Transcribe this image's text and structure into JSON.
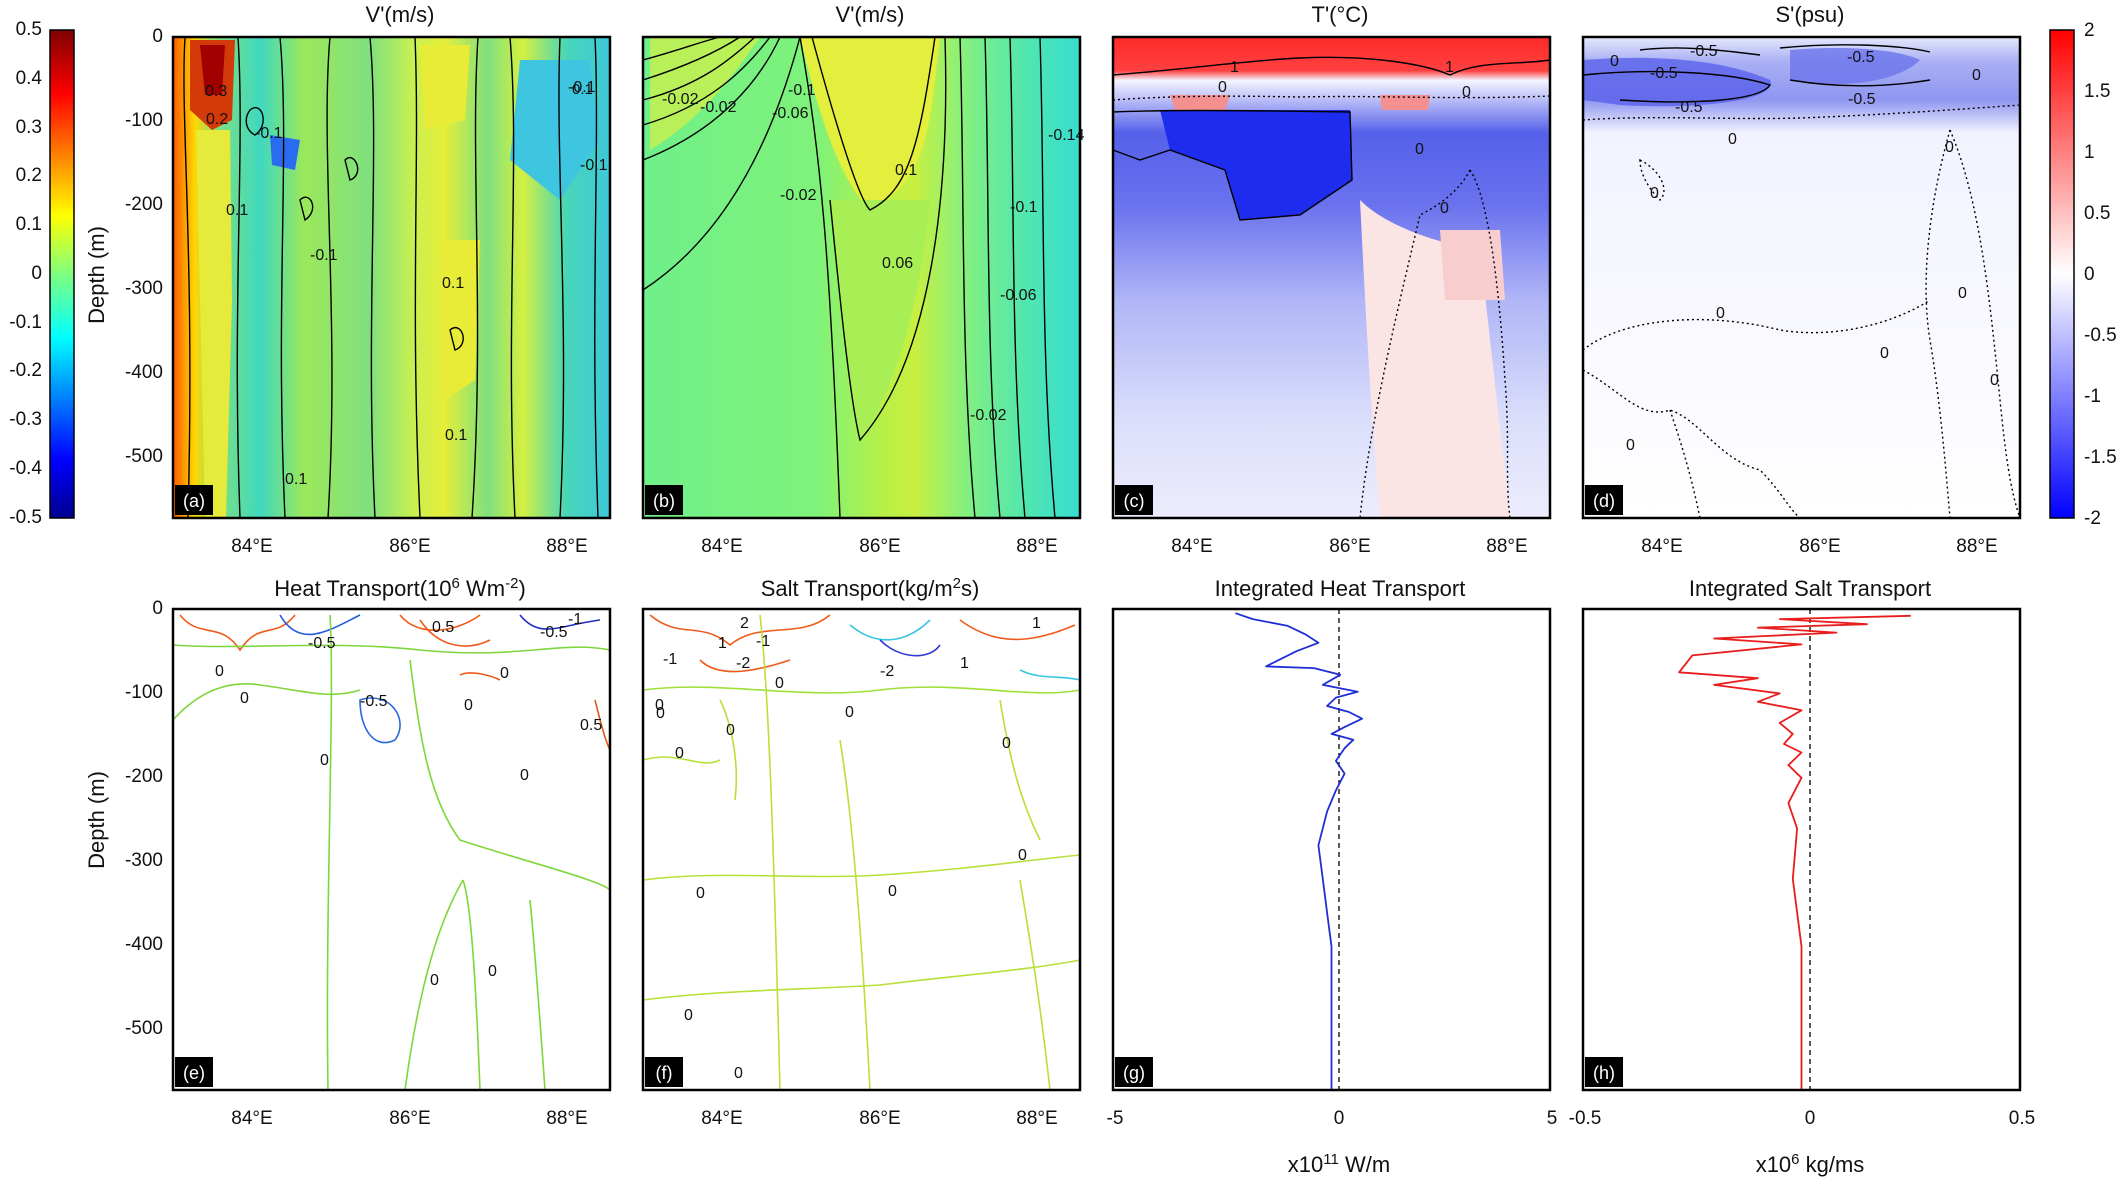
{
  "figure": {
    "colorbar_left": {
      "ticks": [
        "0.5",
        "0.4",
        "0.3",
        "0.2",
        "0.1",
        "0",
        "-0.1",
        "-0.2",
        "-0.3",
        "-0.4",
        "-0.5"
      ],
      "range": [
        -0.5,
        0.5
      ],
      "colormap": "jet"
    },
    "colorbar_right": {
      "ticks": [
        "2",
        "1.5",
        "1",
        "0.5",
        "0",
        "-0.5",
        "-1",
        "-1.5",
        "-2"
      ],
      "range": [
        -2,
        2
      ],
      "colormap": "red-white-blue"
    },
    "depth_ticks": [
      "0",
      "-100",
      "-200",
      "-300",
      "-400",
      "-500"
    ],
    "depth_label": "Depth (m)",
    "lon_ticks": [
      "84°E",
      "86°E",
      "88°E"
    ]
  },
  "panels": {
    "a": {
      "title": "V'(m/s)",
      "tag": "(a)",
      "contours": [
        "0.3",
        "0.2",
        "-0.1",
        "-0.1",
        "0.1",
        "-0.1",
        "0.1",
        "0.1",
        "-0.1",
        "0.1",
        "0.1"
      ]
    },
    "b": {
      "title": "V'(m/s)",
      "tag": "(b)",
      "contours": [
        "-0.02",
        "-0.02",
        "-0.1",
        "-0.06",
        "0.1",
        "0.06",
        "-0.14",
        "-0.1",
        "-0.06",
        "-0.02",
        "-0.02"
      ]
    },
    "c": {
      "title": "T'(°C)",
      "tag": "(c)",
      "contours": [
        "1",
        "0",
        "1",
        "0",
        "0",
        "0"
      ]
    },
    "d": {
      "title": "S'(psu)",
      "tag": "(d)",
      "contours": [
        "-0.5",
        "-0.5",
        "-0.5",
        "-0.5",
        "-0.5",
        "0",
        "0",
        "0",
        "0",
        "0",
        "0",
        "0",
        "0",
        "0",
        "0"
      ]
    },
    "e": {
      "title_main": "Heat Transport(10",
      "title_sup1": "6",
      "title_mid": " Wm",
      "title_sup2": "-2",
      "title_end": ")",
      "tag": "(e)",
      "contours": [
        "-0.5",
        "0.5",
        "-0.5",
        "-1",
        "0",
        "0",
        "0",
        "-0.5",
        "0",
        "0.5",
        "0",
        "0",
        "0",
        "0"
      ]
    },
    "f": {
      "title_main": "Salt Transport(kg/m",
      "title_sup": "2",
      "title_end": "s)",
      "tag": "(f)",
      "contours": [
        "2",
        "1",
        "-1",
        "-1",
        "-2",
        "-2",
        "1",
        "1",
        "0",
        "0",
        "0",
        "0",
        "0",
        "0",
        "0",
        "0",
        "0",
        "0",
        "0",
        "0"
      ]
    },
    "g": {
      "title": "Integrated Heat Transport",
      "tag": "(g)",
      "x_ticks": [
        "-5",
        "0",
        "5"
      ],
      "xlabel_main": "x10",
      "xlabel_sup": "11",
      "xlabel_unit": " W/m"
    },
    "h": {
      "title": "Integrated Salt Transport",
      "tag": "(h)",
      "x_ticks": [
        "-0.5",
        "0",
        "0.5"
      ],
      "xlabel_main": "x10",
      "xlabel_sup": "6",
      "xlabel_unit": " kg/ms"
    }
  },
  "chart_data": [
    {
      "panel": "g",
      "type": "line",
      "title": "Integrated Heat Transport",
      "xlabel": "x10^11 W/m",
      "ylabel": "",
      "xlim": [
        -5,
        5
      ],
      "ylim": [
        -570,
        0
      ],
      "series": [
        {
          "color": "#1f2fd6",
          "x": [
            -2.2,
            -1.8,
            -1.0,
            -0.6,
            -0.3,
            -0.8,
            -1.5,
            -0.4,
            0.2,
            -0.2,
            0.6,
            0.1,
            -0.1,
            0.4,
            0.7,
            0.3,
            0.0,
            0.5,
            0.3,
            0.1,
            0.3,
            0.1,
            -0.1,
            -0.3,
            -0.2,
            -0.1,
            0.0,
            0.0,
            0.0,
            0.0
          ],
          "y": [
            -5,
            -12,
            -20,
            -30,
            -40,
            -50,
            -68,
            -70,
            -78,
            -90,
            -98,
            -105,
            -115,
            -122,
            -130,
            -140,
            -148,
            -155,
            -165,
            -180,
            -195,
            -215,
            -240,
            -280,
            -320,
            -360,
            -400,
            -450,
            -500,
            -570
          ]
        }
      ]
    },
    {
      "panel": "h",
      "type": "line",
      "title": "Integrated Salt Transport",
      "xlabel": "x10^6 kg/ms",
      "ylabel": "",
      "xlim": [
        -0.5,
        0.5
      ],
      "ylim": [
        -570,
        0
      ],
      "series": [
        {
          "color": "#e81d1d",
          "x": [
            0.25,
            -0.05,
            0.15,
            -0.1,
            0.08,
            -0.2,
            0.0,
            -0.25,
            -0.28,
            -0.1,
            -0.2,
            -0.05,
            -0.1,
            0.0,
            -0.05,
            -0.02,
            -0.04,
            0.0,
            -0.03,
            0.0,
            -0.03,
            -0.01,
            -0.02,
            0.0,
            0.0,
            0.0
          ],
          "y": [
            -8,
            -12,
            -18,
            -22,
            -28,
            -35,
            -42,
            -55,
            -75,
            -82,
            -90,
            -100,
            -110,
            -120,
            -135,
            -148,
            -160,
            -170,
            -185,
            -200,
            -230,
            -260,
            -320,
            -400,
            -480,
            -570
          ]
        }
      ]
    }
  ]
}
